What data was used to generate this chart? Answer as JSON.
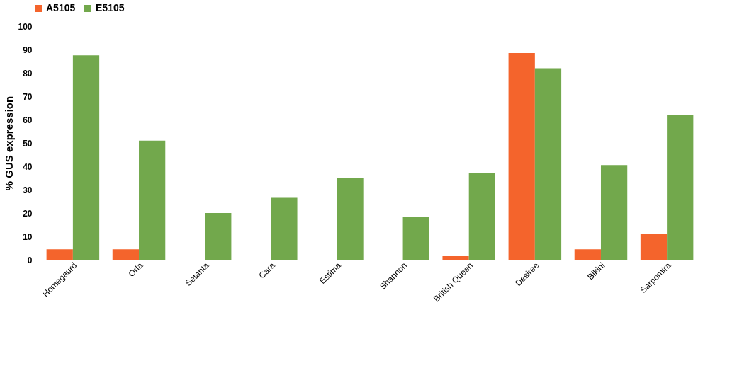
{
  "chart_data": {
    "type": "bar",
    "ylabel": "% GUS expression",
    "categories": [
      "Homegaurd",
      "Orla",
      "Setanta",
      "Cara",
      "Estima",
      "Shannon",
      "British Queen",
      "Desiree",
      "Bikini",
      "Sarpomira"
    ],
    "series": [
      {
        "name": "A5105",
        "color": "#f4642c",
        "values": [
          4.5,
          4.5,
          0,
          0,
          0,
          0,
          1.5,
          88.5,
          4.5,
          11
        ]
      },
      {
        "name": "E5105",
        "color": "#72a84c",
        "values": [
          87.5,
          51,
          20,
          26.5,
          35,
          18.5,
          37,
          82,
          40.5,
          62
        ]
      }
    ],
    "ylim": [
      0,
      100
    ],
    "yticks": [
      0,
      10,
      20,
      30,
      40,
      50,
      60,
      70,
      80,
      90,
      100
    ],
    "grid": false,
    "legend": "top"
  }
}
